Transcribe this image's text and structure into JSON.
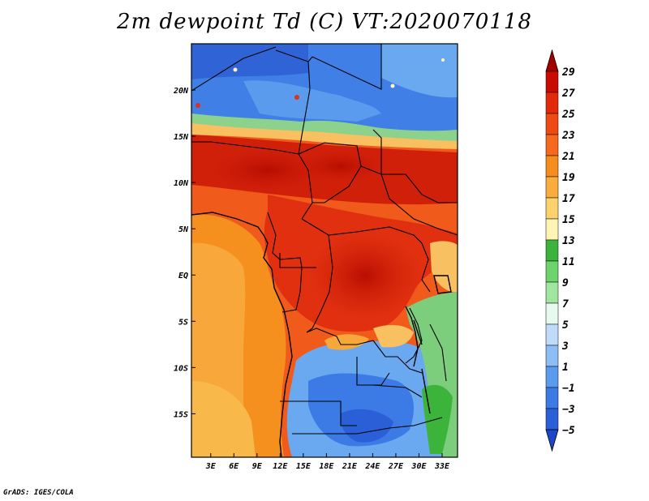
{
  "title": "2m dewpoint Td (C) VT:2020070118",
  "credit": "GrADS: IGES/COLA",
  "map": {
    "lat_labels": [
      "20N",
      "15N",
      "10N",
      "5N",
      "EQ",
      "5S",
      "10S",
      "15S"
    ],
    "lon_labels": [
      "3E",
      "6E",
      "9E",
      "12E",
      "15E",
      "18E",
      "21E",
      "24E",
      "27E",
      "30E",
      "33E"
    ],
    "lat_values": [
      20,
      15,
      10,
      5,
      0,
      -5,
      -10,
      -15
    ],
    "lon_values": [
      3,
      6,
      9,
      12,
      15,
      18,
      21,
      24,
      27,
      30,
      33
    ],
    "extent": {
      "lon_min": 0.5,
      "lon_max": 35,
      "lat_min": -19.7,
      "lat_max": 25
    }
  },
  "colorbar": {
    "labels": [
      "29",
      "27",
      "25",
      "23",
      "21",
      "19",
      "17",
      "15",
      "13",
      "11",
      "9",
      "7",
      "5",
      "3",
      "1",
      "−1",
      "−3",
      "−5"
    ],
    "colors": [
      "#a50000",
      "#c80a00",
      "#e12a0a",
      "#f04a14",
      "#f5681e",
      "#f58c1e",
      "#f8ad3c",
      "#fbd26e",
      "#fff4b4",
      "#3cb43c",
      "#6ed26e",
      "#a0e6a0",
      "#e6faf0",
      "#bedcfa",
      "#8cbef5",
      "#5a9bed",
      "#3c7be6",
      "#2a5fd7",
      "#1e46c8"
    ]
  }
}
